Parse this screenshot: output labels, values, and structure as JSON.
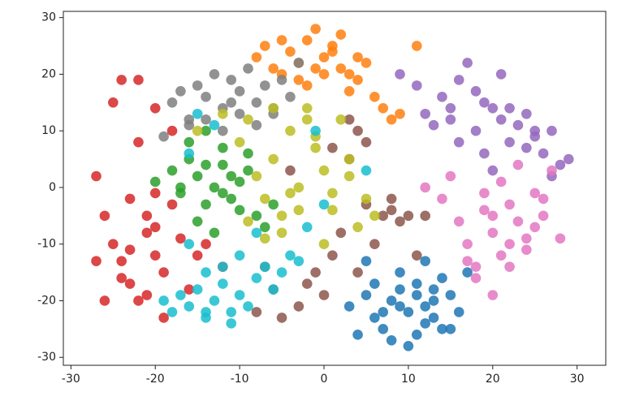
{
  "chart_data": {
    "type": "scatter",
    "xlim": [
      -30.9,
      33.4
    ],
    "ylim": [
      -31.4,
      31.1
    ],
    "xticks": [
      -30,
      -20,
      -10,
      0,
      10,
      20,
      30
    ],
    "yticks": [
      -30,
      -20,
      -10,
      0,
      10,
      20,
      30
    ],
    "grid": false,
    "series": [
      {
        "color": "#1f77b4",
        "x": [
          3,
          5,
          6,
          7,
          8,
          9,
          10,
          11,
          12,
          13,
          14,
          15,
          16,
          8,
          9,
          11,
          12,
          13,
          6,
          7,
          10,
          14,
          17,
          12,
          11,
          5,
          9,
          13,
          15,
          4
        ],
        "values": [
          -21,
          -19,
          -23,
          -25,
          -20,
          -18,
          -22,
          -17,
          -24,
          -20,
          -16,
          -19,
          -22,
          -27,
          -15,
          -26,
          -13,
          -23,
          -17,
          -22,
          -28,
          -25,
          -15,
          -21,
          -19,
          -13,
          -21,
          -18,
          -25,
          -26
        ]
      },
      {
        "color": "#ff7f0e",
        "x": [
          -8,
          -7,
          -5,
          -4,
          -3,
          -2,
          -1,
          0,
          1,
          2,
          3,
          4,
          5,
          -6,
          -3,
          -1,
          1,
          3,
          6,
          7,
          9,
          11,
          -2,
          0,
          2,
          4,
          -5,
          8
        ],
        "values": [
          23,
          25,
          26,
          24,
          22,
          26,
          28,
          23,
          25,
          21,
          20,
          19,
          22,
          21,
          19,
          21,
          24,
          17,
          16,
          14,
          13,
          25,
          18,
          20,
          27,
          23,
          20,
          12
        ]
      },
      {
        "color": "#2ca02c",
        "x": [
          -20,
          -18,
          -17,
          -16,
          -15,
          -14,
          -13,
          -12,
          -11,
          -10,
          -9,
          -8,
          -7,
          -16,
          -14,
          -12,
          -10,
          -13,
          -15,
          -11,
          -9,
          -17,
          -6,
          -12,
          -14
        ],
        "values": [
          1,
          3,
          -1,
          5,
          2,
          -3,
          0,
          4,
          -2,
          1,
          3,
          -5,
          -7,
          8,
          10,
          7,
          -4,
          -8,
          -6,
          2,
          6,
          0,
          -3,
          -1,
          4
        ]
      },
      {
        "color": "#d62728",
        "x": [
          -27,
          -26,
          -25,
          -24,
          -23,
          -22,
          -21,
          -20,
          -19,
          -18,
          -24,
          -22,
          -20,
          -18,
          -16,
          -14,
          -12,
          -26,
          -23,
          -21,
          -19,
          -17,
          -25,
          -22,
          -20,
          -24,
          -21,
          -23,
          -20,
          -15,
          -27
        ],
        "values": [
          2,
          -5,
          -10,
          -13,
          -17,
          -20,
          -8,
          -12,
          -15,
          -3,
          19,
          19,
          14,
          10,
          -18,
          -10,
          -14,
          -20,
          -2,
          -5,
          -23,
          -9,
          15,
          8,
          -1,
          -16,
          -19,
          -11,
          -7,
          -12,
          -13
        ]
      },
      {
        "color": "#9467bd",
        "x": [
          9,
          11,
          12,
          14,
          15,
          16,
          17,
          18,
          19,
          20,
          21,
          22,
          23,
          24,
          25,
          26,
          27,
          28,
          29,
          13,
          16,
          19,
          22,
          25,
          18,
          21,
          24,
          27,
          15,
          20
        ],
        "values": [
          20,
          18,
          13,
          16,
          12,
          19,
          22,
          10,
          15,
          14,
          20,
          8,
          11,
          13,
          9,
          6,
          10,
          4,
          5,
          11,
          8,
          6,
          14,
          10,
          17,
          12,
          7,
          2,
          14,
          3
        ]
      },
      {
        "color": "#8c564b",
        "x": [
          -6,
          -3,
          -1,
          1,
          2,
          3,
          4,
          5,
          6,
          7,
          8,
          10,
          11,
          -8,
          -5,
          -2,
          0,
          3,
          5,
          9,
          -7,
          -4,
          1,
          4,
          8,
          12
        ],
        "values": [
          -18,
          -21,
          -15,
          -12,
          -8,
          5,
          10,
          -3,
          -10,
          -5,
          -2,
          -5,
          -12,
          -22,
          -23,
          -17,
          -19,
          12,
          8,
          -6,
          -14,
          3,
          7,
          -15,
          -4,
          -5
        ]
      },
      {
        "color": "#e377c2",
        "x": [
          12,
          14,
          16,
          17,
          18,
          19,
          20,
          21,
          22,
          23,
          24,
          25,
          26,
          27,
          28,
          15,
          18,
          20,
          22,
          24,
          26,
          19,
          21,
          23,
          25,
          17,
          20,
          22
        ],
        "values": [
          0,
          -2,
          -6,
          -10,
          -14,
          -4,
          -8,
          -12,
          -3,
          -6,
          -9,
          -1,
          -5,
          3,
          -9,
          2,
          -16,
          -19,
          -14,
          -11,
          -2,
          -1,
          1,
          4,
          -7,
          -13,
          -5,
          -10
        ]
      },
      {
        "color": "#7f7f7f",
        "x": [
          -18,
          -17,
          -16,
          -15,
          -14,
          -13,
          -12,
          -11,
          -10,
          -9,
          -8,
          -7,
          -6,
          -5,
          -4,
          -3,
          -14,
          -12,
          -10,
          -8,
          -16,
          -19,
          -11,
          -6
        ],
        "values": [
          15,
          17,
          12,
          18,
          16,
          20,
          14,
          19,
          17,
          21,
          15,
          18,
          13,
          19,
          16,
          22,
          12,
          10,
          13,
          11,
          11,
          9,
          15,
          14
        ]
      },
      {
        "color": "#bcbd22",
        "x": [
          -15,
          -12,
          -10,
          -9,
          -8,
          -7,
          -6,
          -5,
          -4,
          -3,
          -2,
          -1,
          0,
          1,
          2,
          3,
          4,
          5,
          -7,
          -5,
          -3,
          -1,
          1,
          -9,
          -6,
          -4,
          3,
          6,
          -2,
          0
        ],
        "values": [
          10,
          13,
          8,
          12,
          2,
          -2,
          5,
          -5,
          10,
          0,
          14,
          7,
          3,
          -4,
          12,
          2,
          -7,
          -2,
          -9,
          -8,
          -4,
          9,
          -1,
          -6,
          14,
          -1,
          5,
          -5,
          12,
          -10
        ]
      },
      {
        "color": "#17becf",
        "x": [
          -19,
          -18,
          -17,
          -16,
          -15,
          -14,
          -13,
          -12,
          -11,
          -10,
          -9,
          -8,
          -7,
          -6,
          -5,
          -4,
          -3,
          -16,
          -14,
          -12,
          -10,
          -8,
          -15,
          -13,
          -11,
          -2,
          0,
          5,
          -1,
          -16,
          -14
        ],
        "values": [
          -20,
          -22,
          -19,
          -21,
          -18,
          -23,
          -20,
          -17,
          -22,
          -19,
          -21,
          -16,
          -14,
          -18,
          -15,
          -12,
          -13,
          -10,
          -15,
          -14,
          -12,
          -8,
          13,
          11,
          -24,
          -7,
          -3,
          3,
          10,
          6,
          -22
        ]
      }
    ]
  }
}
